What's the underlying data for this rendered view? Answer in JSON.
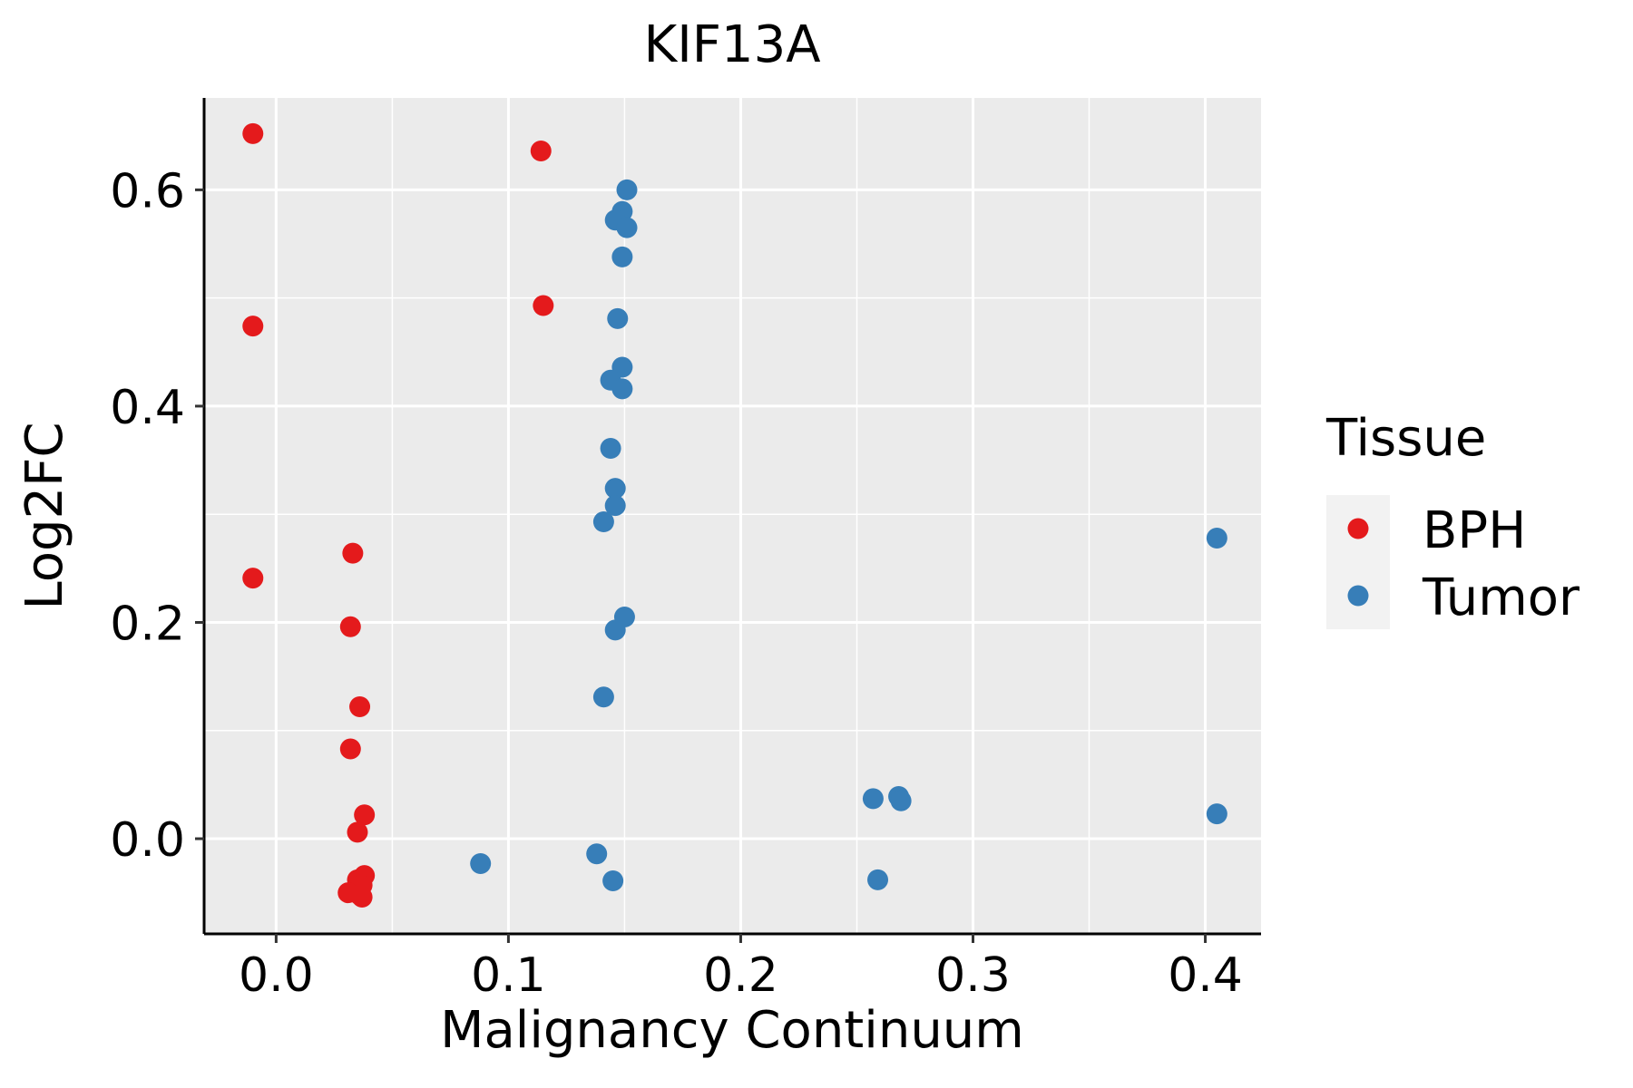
{
  "chart_data": {
    "type": "scatter",
    "title": "KIF13A",
    "xlabel": "Malignancy Continuum",
    "ylabel": "Log2FC",
    "xlim": [
      -0.031,
      0.424
    ],
    "ylim": [
      -0.088,
      0.685
    ],
    "x_ticks": [
      0.0,
      0.1,
      0.2,
      0.3,
      0.4
    ],
    "x_tick_labels": [
      "0.0",
      "0.1",
      "0.2",
      "0.3",
      "0.4"
    ],
    "y_ticks": [
      0.0,
      0.2,
      0.4,
      0.6
    ],
    "y_tick_labels": [
      "0.0",
      "0.2",
      "0.4",
      "0.6"
    ],
    "grid": true,
    "legend": {
      "title": "Tissue",
      "position": "right",
      "entries": [
        {
          "name": "BPH",
          "color": "#E41A1C"
        },
        {
          "name": "Tumor",
          "color": "#377EB8"
        }
      ]
    },
    "panel_background": "#EBEBEB",
    "series": [
      {
        "name": "BPH",
        "color": "#E41A1C",
        "points": [
          {
            "x": -0.01,
            "y": 0.652
          },
          {
            "x": -0.01,
            "y": 0.474
          },
          {
            "x": -0.01,
            "y": 0.241
          },
          {
            "x": 0.114,
            "y": 0.636
          },
          {
            "x": 0.115,
            "y": 0.493
          },
          {
            "x": 0.033,
            "y": 0.264
          },
          {
            "x": 0.032,
            "y": 0.196
          },
          {
            "x": 0.036,
            "y": 0.122
          },
          {
            "x": 0.032,
            "y": 0.083
          },
          {
            "x": 0.038,
            "y": 0.022
          },
          {
            "x": 0.035,
            "y": 0.006
          },
          {
            "x": 0.038,
            "y": -0.034
          },
          {
            "x": 0.035,
            "y": -0.038
          },
          {
            "x": 0.037,
            "y": -0.043
          },
          {
            "x": 0.031,
            "y": -0.05
          },
          {
            "x": 0.036,
            "y": -0.052
          },
          {
            "x": 0.037,
            "y": -0.054
          }
        ]
      },
      {
        "name": "Tumor",
        "color": "#377EB8",
        "points": [
          {
            "x": 0.151,
            "y": 0.6
          },
          {
            "x": 0.149,
            "y": 0.58
          },
          {
            "x": 0.146,
            "y": 0.572
          },
          {
            "x": 0.151,
            "y": 0.565
          },
          {
            "x": 0.149,
            "y": 0.538
          },
          {
            "x": 0.147,
            "y": 0.481
          },
          {
            "x": 0.149,
            "y": 0.436
          },
          {
            "x": 0.144,
            "y": 0.424
          },
          {
            "x": 0.149,
            "y": 0.416
          },
          {
            "x": 0.144,
            "y": 0.361
          },
          {
            "x": 0.146,
            "y": 0.324
          },
          {
            "x": 0.146,
            "y": 0.308
          },
          {
            "x": 0.141,
            "y": 0.293
          },
          {
            "x": 0.15,
            "y": 0.205
          },
          {
            "x": 0.146,
            "y": 0.193
          },
          {
            "x": 0.141,
            "y": 0.131
          },
          {
            "x": 0.088,
            "y": -0.023
          },
          {
            "x": 0.138,
            "y": -0.014
          },
          {
            "x": 0.145,
            "y": -0.039
          },
          {
            "x": 0.257,
            "y": 0.037
          },
          {
            "x": 0.268,
            "y": 0.039
          },
          {
            "x": 0.269,
            "y": 0.035
          },
          {
            "x": 0.259,
            "y": -0.038
          },
          {
            "x": 0.405,
            "y": 0.278
          },
          {
            "x": 0.405,
            "y": 0.023
          }
        ]
      }
    ]
  }
}
